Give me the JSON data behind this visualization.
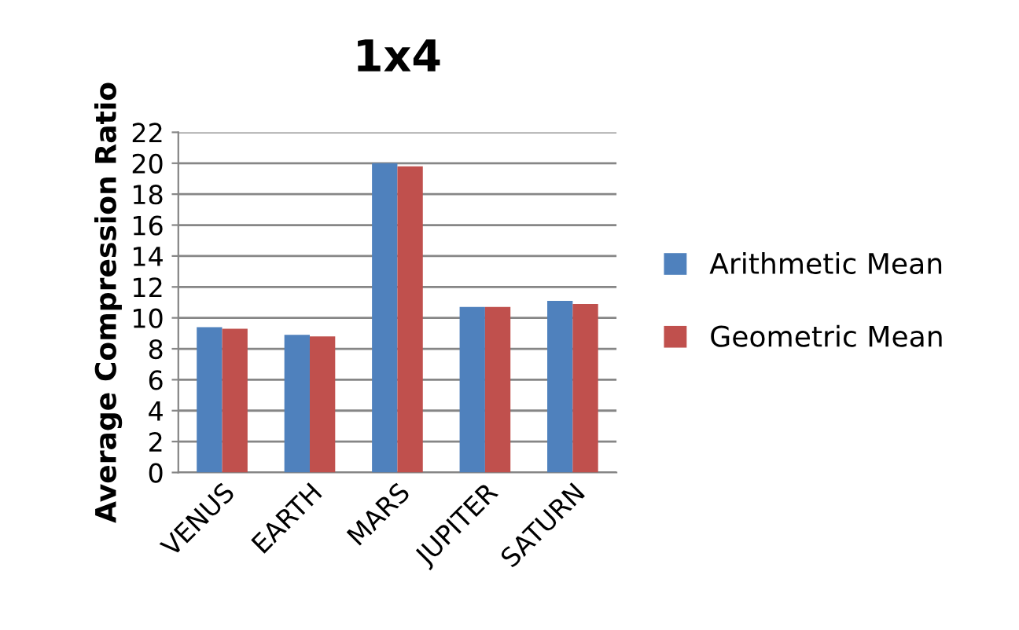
{
  "chart_data": {
    "type": "bar",
    "title": "1x4",
    "ylabel": "Average Compression Ratio",
    "categories": [
      "VENUS",
      "EARTH",
      "MARS",
      "JUPITER",
      "SATURN"
    ],
    "series": [
      {
        "name": "Arithmetic Mean",
        "color": "#4f81bd",
        "values": [
          9.4,
          8.9,
          20.0,
          10.7,
          11.1
        ]
      },
      {
        "name": "Geometric Mean",
        "color": "#c0504d",
        "values": [
          9.3,
          8.8,
          19.8,
          10.7,
          10.9
        ]
      }
    ],
    "ylim": [
      0,
      22
    ],
    "yticks": [
      0,
      2,
      4,
      6,
      8,
      10,
      12,
      14,
      16,
      18,
      20,
      22
    ],
    "grid": "y",
    "legend": "right"
  }
}
